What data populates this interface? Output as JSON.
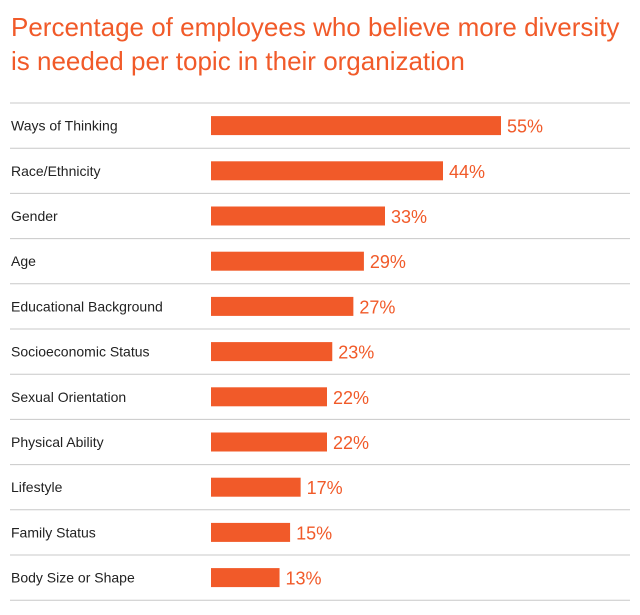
{
  "chart_data": {
    "type": "bar",
    "orientation": "horizontal",
    "title": "Percentage of employees who believe more diversity is needed per topic in their organization",
    "categories": [
      "Ways of Thinking",
      "Race/Ethnicity",
      "Gender",
      "Age",
      "Educational Background",
      "Socioeconomic Status",
      "Sexual Orientation",
      "Physical Ability",
      "Lifestyle",
      "Family Status",
      "Body Size or Shape"
    ],
    "values": [
      55,
      44,
      33,
      29,
      27,
      23,
      22,
      22,
      17,
      15,
      13
    ],
    "value_labels": [
      "55%",
      "44%",
      "33%",
      "29%",
      "27%",
      "23%",
      "22%",
      "22%",
      "17%",
      "15%",
      "13%"
    ],
    "unit": "%",
    "xlim": [
      0,
      100
    ],
    "grid": false,
    "legend": "none",
    "colors": {
      "bar": "#f15a29",
      "title": "#f15a29",
      "value_label": "#f15a29",
      "divider": "#c8c8c8",
      "category_label": "#222222"
    }
  }
}
